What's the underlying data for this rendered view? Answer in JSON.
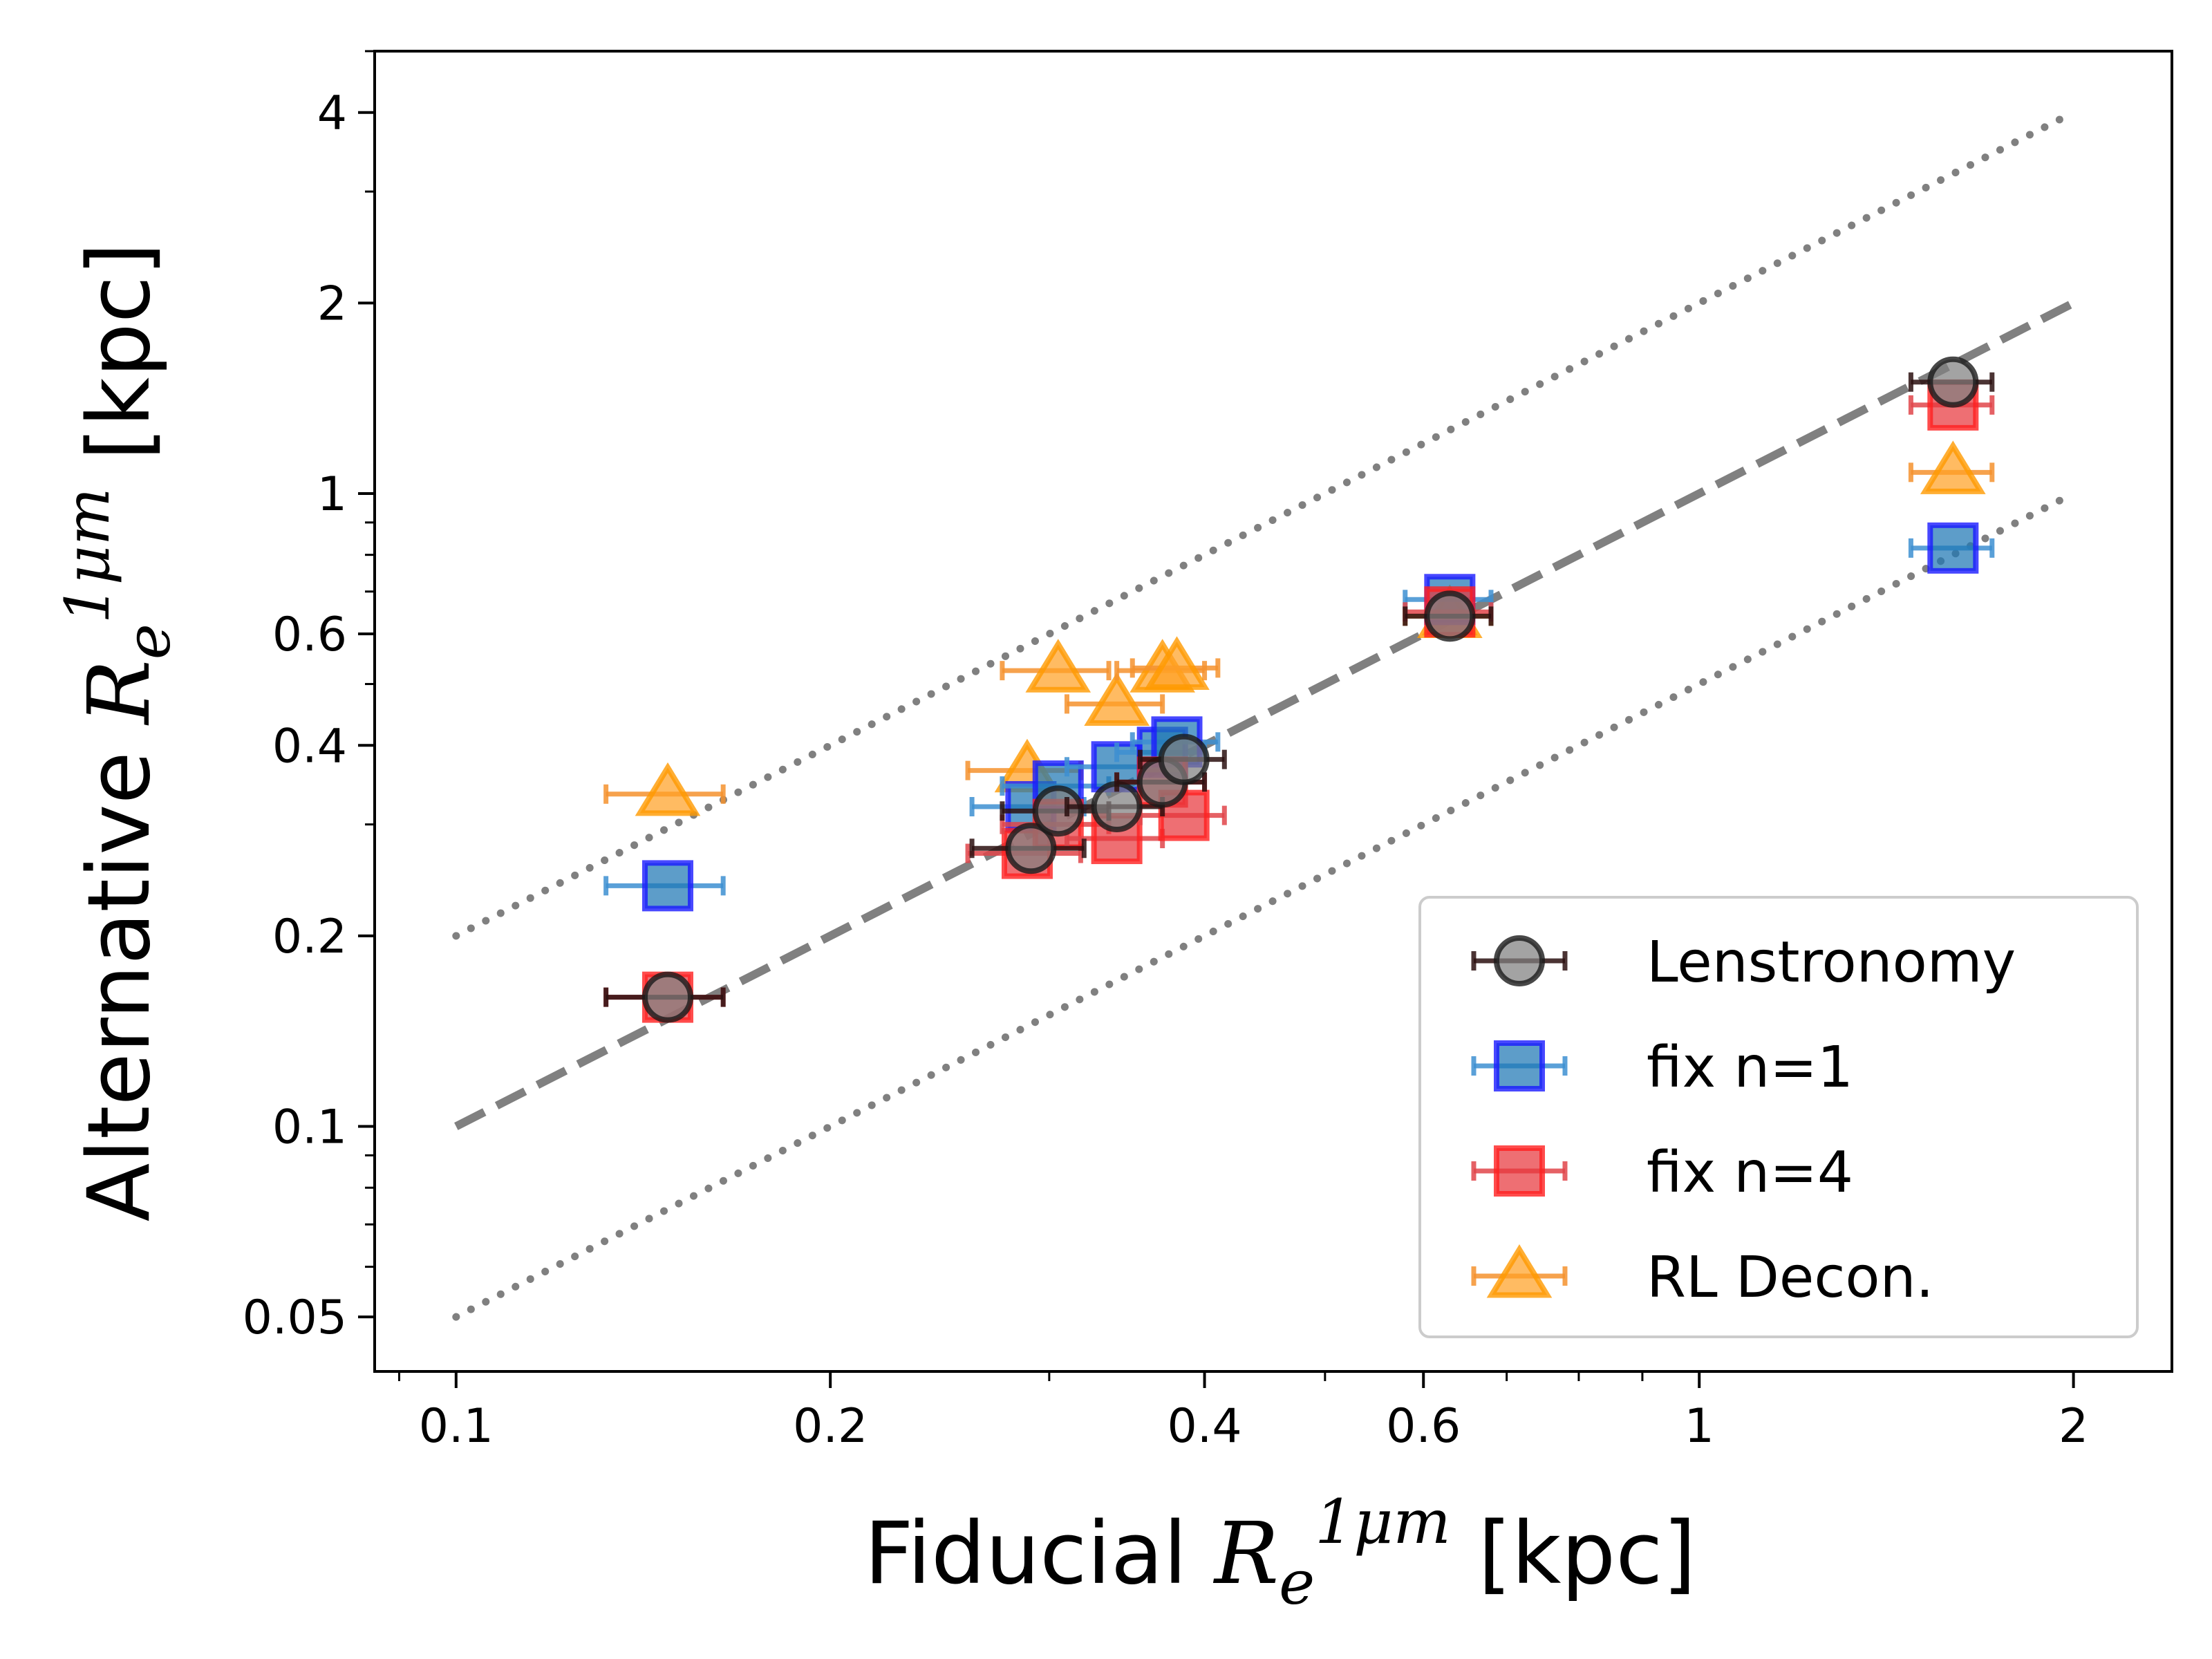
{
  "chart_data": {
    "type": "scatter",
    "xlabel": {
      "prefix": "Fiducial ",
      "sym": "R",
      "sub": "e",
      "sup": "1μm",
      "unit": " [kpc]"
    },
    "ylabel": {
      "prefix": "Alternative ",
      "sym": "R",
      "sub": "e",
      "sup": "1μm",
      "unit": " [kpc]"
    },
    "x_scale": "log",
    "y_scale": "log",
    "xlim": [
      0.086,
      2.4
    ],
    "ylim": [
      0.041,
      5.0
    ],
    "x_ticks": [
      {
        "value": 0.1,
        "label": "0.1"
      },
      {
        "value": 0.2,
        "label": "0.2"
      },
      {
        "value": 0.4,
        "label": "0.4"
      },
      {
        "value": 0.6,
        "label": "0.6"
      },
      {
        "value": 1,
        "label": "1"
      },
      {
        "value": 2,
        "label": "2"
      }
    ],
    "y_ticks": [
      {
        "value": 0.05,
        "label": "0.05"
      },
      {
        "value": 0.1,
        "label": "0.1"
      },
      {
        "value": 0.2,
        "label": "0.2"
      },
      {
        "value": 0.4,
        "label": "0.4"
      },
      {
        "value": 0.6,
        "label": "0.6"
      },
      {
        "value": 1,
        "label": "1"
      },
      {
        "value": 2,
        "label": "2"
      },
      {
        "value": 4,
        "label": "4"
      }
    ],
    "reference_lines": [
      {
        "style": "dashed",
        "x": [
          0.1,
          2.0
        ],
        "y": [
          0.1,
          2.0
        ]
      },
      {
        "style": "dotted",
        "x": [
          0.1,
          2.0
        ],
        "y": [
          0.2,
          4.0
        ]
      },
      {
        "style": "dotted",
        "x": [
          0.1,
          2.0
        ],
        "y": [
          0.05,
          1.0
        ]
      }
    ],
    "legend_position": "lower-right",
    "grid": false,
    "series": [
      {
        "name": "RL Decon.",
        "marker": "triangle",
        "fill": "#ffa126",
        "edge": "#ff9a00",
        "err": "#f5922e",
        "points": [
          {
            "x": 0.148,
            "y": 0.335,
            "xerr": 0.016
          },
          {
            "x": 0.288,
            "y": 0.365,
            "xerr": 0.03
          },
          {
            "x": 0.305,
            "y": 0.525,
            "xerr": 0.03
          },
          {
            "x": 0.34,
            "y": 0.465,
            "xerr": 0.03
          },
          {
            "x": 0.37,
            "y": 0.525,
            "xerr": 0.03
          },
          {
            "x": 0.38,
            "y": 0.53,
            "xerr": 0.03
          },
          {
            "x": 0.63,
            "y": 0.64,
            "xerr": 0.05
          },
          {
            "x": 1.6,
            "y": 1.08,
            "xerr": 0.12
          }
        ]
      },
      {
        "name": "fix n=1",
        "marker": "square",
        "fill": "#1f77b4",
        "edge": "#1a1aff",
        "err": "#3d8fd1",
        "points": [
          {
            "x": 0.148,
            "y": 0.24,
            "xerr": 0.016
          },
          {
            "x": 0.29,
            "y": 0.32,
            "xerr": 0.03
          },
          {
            "x": 0.305,
            "y": 0.345,
            "xerr": 0.03
          },
          {
            "x": 0.34,
            "y": 0.37,
            "xerr": 0.03
          },
          {
            "x": 0.37,
            "y": 0.39,
            "xerr": 0.03
          },
          {
            "x": 0.38,
            "y": 0.405,
            "xerr": 0.03
          },
          {
            "x": 0.63,
            "y": 0.68,
            "xerr": 0.05
          },
          {
            "x": 1.6,
            "y": 0.82,
            "xerr": 0.12
          }
        ]
      },
      {
        "name": "fix n=4",
        "marker": "square",
        "fill": "#e8383d",
        "edge": "#ff1f1f",
        "err": "#e0454a",
        "points": [
          {
            "x": 0.148,
            "y": 0.16,
            "xerr": 0.016
          },
          {
            "x": 0.288,
            "y": 0.27,
            "xerr": 0.03
          },
          {
            "x": 0.305,
            "y": 0.3,
            "xerr": 0.03
          },
          {
            "x": 0.34,
            "y": 0.285,
            "xerr": 0.03
          },
          {
            "x": 0.37,
            "y": 0.35,
            "xerr": 0.03
          },
          {
            "x": 0.385,
            "y": 0.31,
            "xerr": 0.03
          },
          {
            "x": 0.63,
            "y": 0.65,
            "xerr": 0.05
          },
          {
            "x": 1.6,
            "y": 1.38,
            "xerr": 0.12
          }
        ]
      },
      {
        "name": "Lenstronomy",
        "marker": "circle",
        "fill": "#808080",
        "edge": "#1a1a1a",
        "err": "#2b1010",
        "points": [
          {
            "x": 0.148,
            "y": 0.16,
            "xerr": 0.016
          },
          {
            "x": 0.29,
            "y": 0.275,
            "xerr": 0.03
          },
          {
            "x": 0.305,
            "y": 0.315,
            "xerr": 0.03
          },
          {
            "x": 0.34,
            "y": 0.32,
            "xerr": 0.03
          },
          {
            "x": 0.37,
            "y": 0.35,
            "xerr": 0.03
          },
          {
            "x": 0.385,
            "y": 0.38,
            "xerr": 0.03
          },
          {
            "x": 0.63,
            "y": 0.64,
            "xerr": 0.05
          },
          {
            "x": 1.6,
            "y": 1.5,
            "xerr": 0.12
          }
        ]
      }
    ],
    "legend_order": [
      "Lenstronomy",
      "fix n=1",
      "fix n=4",
      "RL Decon."
    ]
  }
}
